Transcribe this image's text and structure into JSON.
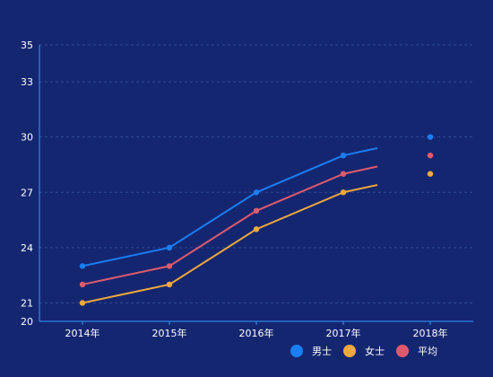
{
  "chart_data": {
    "type": "line",
    "title": "",
    "xlabel": "",
    "ylabel": "",
    "categories": [
      "2014年",
      "2015年",
      "2016年",
      "2017年",
      "2018年"
    ],
    "y_ticks": [
      20,
      21,
      24,
      27,
      30,
      33,
      35
    ],
    "ylim": [
      20,
      35
    ],
    "grid": true,
    "legend_position": "bottom-right",
    "series": [
      {
        "name": "男士",
        "color": "#1a7ef3",
        "values": [
          23,
          24,
          27,
          29,
          30
        ],
        "line_end": 29.4
      },
      {
        "name": "女士",
        "color": "#f0a93c",
        "values": [
          21,
          22,
          25,
          27,
          28
        ],
        "line_end": 27.4
      },
      {
        "name": "平均",
        "color": "#dd5b6c",
        "values": [
          22,
          23,
          26,
          28,
          29
        ],
        "line_end": 28.4
      }
    ],
    "note_2018": "2018 values are shown as isolated points; lines end between 2017 and 2018",
    "colors": {
      "background": "#152671",
      "axis": "#2f9bff",
      "grid": "#2c4a8f",
      "text": "#ffffff"
    }
  }
}
